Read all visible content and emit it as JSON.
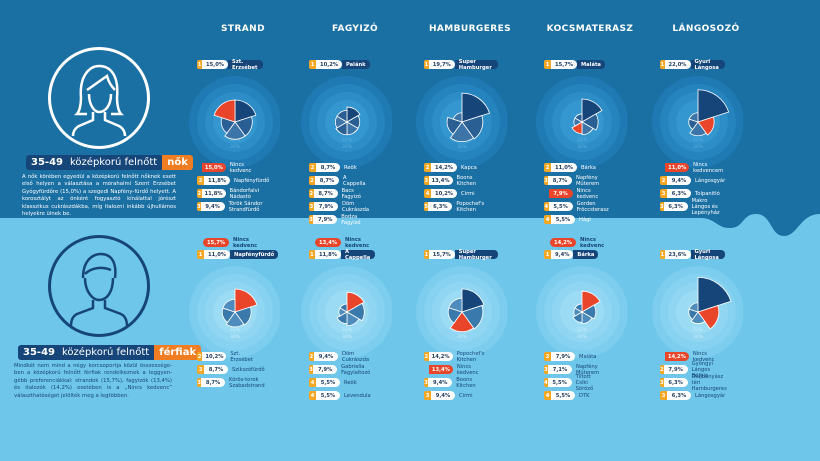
{
  "columns": [
    "STRAND",
    "FAGYIZÓ",
    "HAMBURGERES",
    "KOCSMATERASZ",
    "LÁNGOSOZÓ"
  ],
  "scale_labels": [
    "15%",
    "22%",
    "30%"
  ],
  "segments": {
    "women": {
      "age": "35-49",
      "label_main": "középkorú felnőtt",
      "label_accent": "nők",
      "description": "A nők körében egyedül a középkorú felnőtt nőknek esett első helyen a választása a mórahalmi Szent Erzsébet Gyógyfürdőre (15,0%) a szegedi Napfény-fürdő helyett. A korosztályt az önként fogyasztó kínálattal jórészt klasszikus cukrászdákba, míg italozni inkább újhullámos helyekre ülnek be."
    },
    "men": {
      "age": "35-49",
      "label_main": "középkorú felnőtt",
      "label_accent": "férfiak",
      "description": "Mindkét nem mind a négy korcsoportja közül összessége-ben a középkorú felnőtt férfiak rendelkeznek a leggyen-gébb preferenciákkal: strandok (15,7%), fagyizók (13,4%) és italozók (14,2%) esetében is a „Nincs kedvenc” választhatóséget jelölték meg a legtöbben."
    }
  },
  "panels": {
    "women": [
      {
        "top": {
          "rank": "1",
          "pct": "15,0%",
          "name": "Szt. Erzsébet"
        },
        "list": [
          {
            "rank": "",
            "pct": "15,0%",
            "name": "Nincs kedvenc",
            "red": true
          },
          {
            "rank": "2",
            "pct": "11,8%",
            "name": "Napfényfürdő"
          },
          {
            "rank": "2",
            "pct": "11,8%",
            "name": "Bándorfalvi Nádastó"
          },
          {
            "rank": "3",
            "pct": "9,4%",
            "name": "Török Sándor Strandfürdő"
          }
        ],
        "chart": {
          "values": [
            15.0,
            11.8,
            11.8,
            9.4,
            15.0
          ],
          "nk": 4
        }
      },
      {
        "top": {
          "rank": "1",
          "pct": "10,2%",
          "name": "Palánk"
        },
        "list": [
          {
            "rank": "2",
            "pct": "8,7%",
            "name": "Reök"
          },
          {
            "rank": "2",
            "pct": "8,7%",
            "name": "A Cappella"
          },
          {
            "rank": "2",
            "pct": "8,7%",
            "name": "Bacs Fagyizó"
          },
          {
            "rank": "3",
            "pct": "7,9%",
            "name": "Döm Cukrászda"
          },
          {
            "rank": "3",
            "pct": "7,9%",
            "name": "Bodza Fagyizó"
          }
        ],
        "chart": {
          "values": [
            10.2,
            8.7,
            8.7,
            8.7,
            7.9,
            7.9
          ],
          "nk": -1
        }
      },
      {
        "top": {
          "rank": "1",
          "pct": "19,7%",
          "name": "Super Hamburger"
        },
        "list": [
          {
            "rank": "2",
            "pct": "14,2%",
            "name": "Kapca"
          },
          {
            "rank": "3",
            "pct": "13,4%",
            "name": "Boons Kitchen"
          },
          {
            "rank": "4",
            "pct": "10,2%",
            "name": "Cirmi"
          },
          {
            "rank": "5",
            "pct": "6,3%",
            "name": "Popochef's Kitchen"
          }
        ],
        "chart": {
          "values": [
            19.7,
            14.2,
            13.4,
            10.2,
            6.3
          ],
          "nk": -1
        }
      },
      {
        "top": {
          "rank": "1",
          "pct": "15,7%",
          "name": "Maláta"
        },
        "list": [
          {
            "rank": "2",
            "pct": "11,0%",
            "name": "Bárka"
          },
          {
            "rank": "3",
            "pct": "8,7%",
            "name": "Napfény Műterem"
          },
          {
            "rank": "",
            "pct": "7,9%",
            "name": "Nincs kedvenc",
            "red": true
          },
          {
            "rank": "4",
            "pct": "5,5%",
            "name": "Gorden Fröccsterasz"
          },
          {
            "rank": "4",
            "pct": "5,5%",
            "name": "Hági"
          }
        ],
        "chart": {
          "values": [
            15.7,
            11.0,
            8.7,
            7.9,
            5.5,
            5.5
          ],
          "nk": 3
        }
      },
      {
        "top": {
          "rank": "1",
          "pct": "22,0%",
          "name": "Gyuri Lángosa"
        },
        "list": [
          {
            "rank": "",
            "pct": "11,0%",
            "name": "Nincs kedvencem",
            "red": true
          },
          {
            "rank": "2",
            "pct": "9,4%",
            "name": "Lángosgyár"
          },
          {
            "rank": "3",
            "pct": "6,3%",
            "name": "Tolpanitló"
          },
          {
            "rank": "3",
            "pct": "6,3%",
            "name": "Makro Lángos és Lepényház"
          }
        ],
        "chart": {
          "values": [
            22.0,
            11.0,
            9.4,
            6.3,
            6.3
          ],
          "nk": 1
        }
      }
    ],
    "men": [
      {
        "nk": {
          "pct": "15,7%",
          "name": "Nincs kedvenc"
        },
        "top": {
          "rank": "1",
          "pct": "11,0%",
          "name": "Napfényfürdő"
        },
        "list": [
          {
            "rank": "2",
            "pct": "10,2%",
            "name": "Szt. Erzsébet"
          },
          {
            "rank": "3",
            "pct": "8,7%",
            "name": "Szikszófürdő"
          },
          {
            "rank": "3",
            "pct": "8,7%",
            "name": "Körös-torok Szabadstrand"
          }
        ],
        "chart": {
          "values": [
            15.7,
            11.0,
            10.2,
            8.7,
            8.7
          ],
          "nk": 0
        }
      },
      {
        "nk": {
          "pct": "13,4%",
          "name": "Nincs kedvenc"
        },
        "top": {
          "rank": "1",
          "pct": "11,8%",
          "name": "A Cappella"
        },
        "list": [
          {
            "rank": "2",
            "pct": "9,4%",
            "name": "Döm Cukrászda"
          },
          {
            "rank": "3",
            "pct": "7,9%",
            "name": "Gabriella Fagylaltozó"
          },
          {
            "rank": "4",
            "pct": "5,5%",
            "name": "Reök"
          },
          {
            "rank": "4",
            "pct": "5,5%",
            "name": "Levendula"
          }
        ],
        "chart": {
          "values": [
            13.4,
            11.8,
            9.4,
            7.9,
            5.5,
            5.5
          ],
          "nk": 0
        }
      },
      {
        "top": {
          "rank": "1",
          "pct": "15,7%",
          "name": "Super Hamburger"
        },
        "list": [
          {
            "rank": "2",
            "pct": "14,2%",
            "name": "Popochef's Kitchen"
          },
          {
            "rank": "",
            "pct": "13,4%",
            "name": "Nincs kedvenc",
            "red": true
          },
          {
            "rank": "3",
            "pct": "9,4%",
            "name": "Boons Kitchen"
          },
          {
            "rank": "3",
            "pct": "9,4%",
            "name": "Cirmi"
          }
        ],
        "chart": {
          "values": [
            15.7,
            14.2,
            13.4,
            9.4,
            9.4
          ],
          "nk": 2
        }
      },
      {
        "nk": {
          "pct": "14,2%",
          "name": "Nincs kedvenc"
        },
        "top": {
          "rank": "1",
          "pct": "9,4%",
          "name": "Bárka"
        },
        "list": [
          {
            "rank": "2",
            "pct": "7,9%",
            "name": "Maláta"
          },
          {
            "rank": "3",
            "pct": "7,1%",
            "name": "Napfény Műterem"
          },
          {
            "rank": "4",
            "pct": "5,5%",
            "name": "Tiltott Csíki Söröző"
          },
          {
            "rank": "4",
            "pct": "5,5%",
            "name": "DTK"
          }
        ],
        "chart": {
          "values": [
            14.2,
            9.4,
            7.9,
            7.1,
            5.5,
            5.5
          ],
          "nk": 0
        }
      },
      {
        "top": {
          "rank": "1",
          "pct": "23,6%",
          "name": "Gyuri Lángosa"
        },
        "list": [
          {
            "rank": "",
            "pct": "14,2%",
            "name": "Nincs kedvenc",
            "red": true
          },
          {
            "rank": "2",
            "pct": "7,9%",
            "name": "Gyöngyi Lángos Büféje"
          },
          {
            "rank": "3",
            "pct": "6,3%",
            "name": "Olajbányász téri Hamburgeres"
          },
          {
            "rank": "3",
            "pct": "6,3%",
            "name": "Lángosgyár"
          }
        ],
        "chart": {
          "values": [
            23.6,
            14.2,
            7.9,
            6.3,
            6.3
          ],
          "nk": 1
        }
      }
    ]
  },
  "colors": {
    "navy": "#16457a",
    "dark_bg": "#1a6fa3",
    "light_bg": "#6ec6ea",
    "orange": "#f07d22",
    "red": "#e8452a",
    "gold": "#f5a623"
  }
}
